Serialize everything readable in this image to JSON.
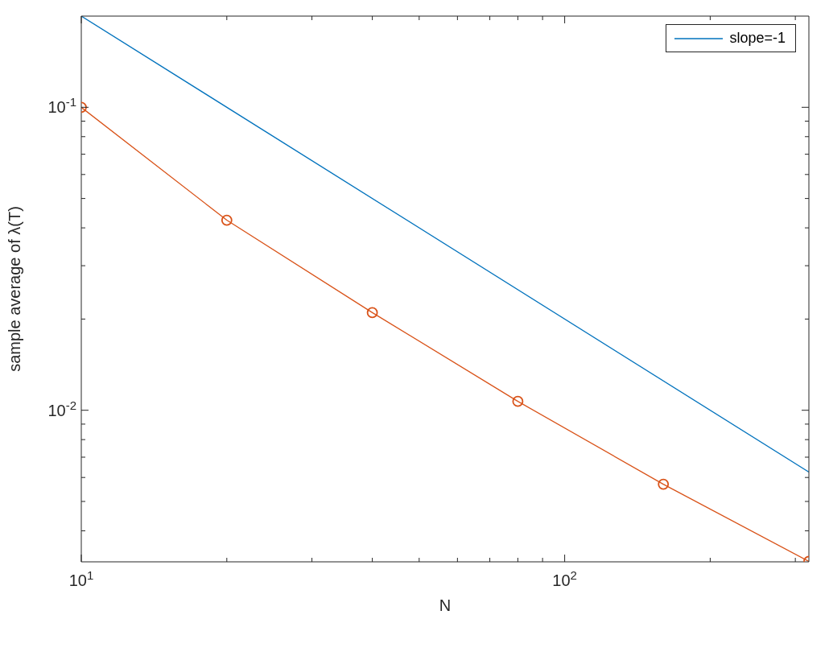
{
  "chart_data": {
    "type": "line",
    "xlabel": "N",
    "ylabel": "sample average of λ(T)",
    "log": "xy",
    "legend": "top right",
    "xlim": [
      10,
      320
    ],
    "ylim": [
      0.00316,
      0.2
    ],
    "xticks": [
      {
        "value": 10,
        "label": "10$^{1}$"
      },
      {
        "value": 20,
        "label": null
      },
      {
        "value": 30,
        "label": null
      },
      {
        "value": 40,
        "label": null
      },
      {
        "value": 50,
        "label": null
      },
      {
        "value": 60,
        "label": null
      },
      {
        "value": 70,
        "label": null
      },
      {
        "value": 80,
        "label": null
      },
      {
        "value": 90,
        "label": null
      },
      {
        "value": 100,
        "label": "10$^{2}$"
      },
      {
        "value": 200,
        "label": null
      },
      {
        "value": 300,
        "label": null
      }
    ],
    "yticks": [
      {
        "value": 0.004,
        "label": null
      },
      {
        "value": 0.005,
        "label": null
      },
      {
        "value": 0.006,
        "label": null
      },
      {
        "value": 0.007,
        "label": null
      },
      {
        "value": 0.008,
        "label": null
      },
      {
        "value": 0.009,
        "label": null
      },
      {
        "value": 0.01,
        "label": "10$^{-2}$"
      },
      {
        "value": 0.02,
        "label": null
      },
      {
        "value": 0.03,
        "label": null
      },
      {
        "value": 0.04,
        "label": null
      },
      {
        "value": 0.05,
        "label": null
      },
      {
        "value": 0.06,
        "label": null
      },
      {
        "value": 0.07,
        "label": null
      },
      {
        "value": 0.08,
        "label": null
      },
      {
        "value": 0.09,
        "label": null
      },
      {
        "value": 0.1,
        "label": "10$^{-1}$"
      }
    ],
    "series": [
      {
        "name": "slope=-1",
        "color": "#0072bd",
        "marker": "none",
        "x": [
          10,
          320
        ],
        "values": [
          0.2,
          0.00625
        ]
      },
      {
        "color": "#d95319",
        "marker": "circle",
        "x": [
          10,
          20,
          40,
          80,
          160,
          320
        ],
        "values": [
          0.1,
          0.0424,
          0.021,
          0.0107,
          0.0057,
          0.00317
        ]
      }
    ]
  }
}
